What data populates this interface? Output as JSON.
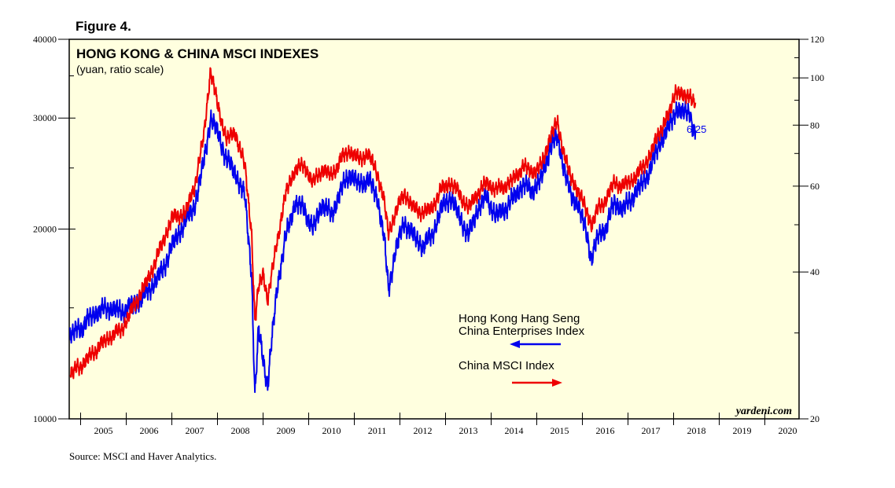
{
  "figure_label": "Figure 4.",
  "source": "Source: MSCI and Haver Analytics.",
  "colors": {
    "hk": "#0000ee",
    "china": "#ee0000",
    "background": "#ffffdf"
  },
  "chart_data": {
    "type": "line",
    "title": "HONG KONG & CHINA MSCI INDEXES",
    "subtitle": "(yuan, ratio scale)",
    "watermark": "yardeni.com",
    "end_label": "6/25",
    "x_range": [
      2004.75,
      2020.75
    ],
    "x_ticks": [
      "2005",
      "2006",
      "2007",
      "2008",
      "2009",
      "2010",
      "2011",
      "2012",
      "2013",
      "2014",
      "2015",
      "2016",
      "2017",
      "2018",
      "2019",
      "2020"
    ],
    "y_left": {
      "scale": "log",
      "range": [
        10000,
        40000
      ],
      "ticks": [
        10000,
        20000,
        30000,
        40000
      ],
      "tick_labels": [
        "10000",
        "20000",
        "30000",
        "40000"
      ]
    },
    "y_right": {
      "scale": "log",
      "range": [
        20,
        120
      ],
      "ticks": [
        20,
        40,
        60,
        80,
        100,
        120
      ],
      "tick_labels": [
        "20",
        "40",
        "60",
        "80",
        "100",
        "120"
      ]
    },
    "series": [
      {
        "name": "Hong Kong Hang Seng China Enterprises Index",
        "legend_lines": [
          "Hong Kong Hang Seng",
          "China Enterprises Index"
        ],
        "axis": "left",
        "arrow": "left",
        "points": [
          [
            2004.77,
            13700
          ],
          [
            2005.0,
            13900
          ],
          [
            2005.3,
            14700
          ],
          [
            2005.6,
            15000
          ],
          [
            2005.9,
            14800
          ],
          [
            2006.2,
            15200
          ],
          [
            2006.5,
            16000
          ],
          [
            2006.8,
            17200
          ],
          [
            2007.0,
            18800
          ],
          [
            2007.3,
            20600
          ],
          [
            2007.5,
            21800
          ],
          [
            2007.7,
            25500
          ],
          [
            2007.85,
            30000
          ],
          [
            2008.0,
            28500
          ],
          [
            2008.2,
            25800
          ],
          [
            2008.4,
            24500
          ],
          [
            2008.6,
            22500
          ],
          [
            2008.75,
            17000
          ],
          [
            2008.82,
            11000
          ],
          [
            2008.9,
            13800
          ],
          [
            2009.0,
            12500
          ],
          [
            2009.1,
            11300
          ],
          [
            2009.2,
            13500
          ],
          [
            2009.3,
            16000
          ],
          [
            2009.5,
            19500
          ],
          [
            2009.7,
            22000
          ],
          [
            2009.9,
            21500
          ],
          [
            2010.1,
            20000
          ],
          [
            2010.3,
            22000
          ],
          [
            2010.5,
            21000
          ],
          [
            2010.7,
            23000
          ],
          [
            2010.9,
            24500
          ],
          [
            2011.1,
            23500
          ],
          [
            2011.3,
            24000
          ],
          [
            2011.5,
            22500
          ],
          [
            2011.65,
            19500
          ],
          [
            2011.75,
            16000
          ],
          [
            2011.9,
            18500
          ],
          [
            2012.1,
            20500
          ],
          [
            2012.3,
            19500
          ],
          [
            2012.5,
            18800
          ],
          [
            2012.7,
            19500
          ],
          [
            2012.9,
            21500
          ],
          [
            2013.1,
            22500
          ],
          [
            2013.3,
            21000
          ],
          [
            2013.5,
            19500
          ],
          [
            2013.7,
            21500
          ],
          [
            2013.9,
            22500
          ],
          [
            2014.1,
            21000
          ],
          [
            2014.3,
            21500
          ],
          [
            2014.5,
            22500
          ],
          [
            2014.7,
            23500
          ],
          [
            2014.9,
            23000
          ],
          [
            2015.1,
            24000
          ],
          [
            2015.3,
            27000
          ],
          [
            2015.45,
            28000
          ],
          [
            2015.6,
            25000
          ],
          [
            2015.75,
            22500
          ],
          [
            2015.9,
            22000
          ],
          [
            2016.1,
            19500
          ],
          [
            2016.2,
            18000
          ],
          [
            2016.35,
            19500
          ],
          [
            2016.5,
            20000
          ],
          [
            2016.7,
            22000
          ],
          [
            2016.9,
            21500
          ],
          [
            2017.1,
            22500
          ],
          [
            2017.3,
            23500
          ],
          [
            2017.5,
            25000
          ],
          [
            2017.7,
            27500
          ],
          [
            2017.9,
            29000
          ],
          [
            2018.05,
            31000
          ],
          [
            2018.2,
            30500
          ],
          [
            2018.35,
            31000
          ],
          [
            2018.42,
            29000
          ],
          [
            2018.48,
            28700
          ]
        ]
      },
      {
        "name": "China MSCI Index",
        "legend_lines": [
          "China MSCI Index"
        ],
        "axis": "right",
        "arrow": "right",
        "points": [
          [
            2004.77,
            25
          ],
          [
            2005.0,
            25.6
          ],
          [
            2005.3,
            27.5
          ],
          [
            2005.6,
            29.3
          ],
          [
            2005.9,
            30.5
          ],
          [
            2006.2,
            34.5
          ],
          [
            2006.5,
            39
          ],
          [
            2006.8,
            46
          ],
          [
            2007.0,
            51.5
          ],
          [
            2007.3,
            53
          ],
          [
            2007.5,
            60
          ],
          [
            2007.7,
            76
          ],
          [
            2007.85,
            104
          ],
          [
            2008.0,
            88
          ],
          [
            2008.2,
            75
          ],
          [
            2008.4,
            77
          ],
          [
            2008.6,
            66
          ],
          [
            2008.75,
            48
          ],
          [
            2008.82,
            32
          ],
          [
            2008.9,
            37
          ],
          [
            2009.0,
            40
          ],
          [
            2009.1,
            35
          ],
          [
            2009.2,
            40
          ],
          [
            2009.3,
            46
          ],
          [
            2009.5,
            58
          ],
          [
            2009.7,
            65
          ],
          [
            2009.9,
            66
          ],
          [
            2010.1,
            61
          ],
          [
            2010.3,
            65
          ],
          [
            2010.5,
            63
          ],
          [
            2010.7,
            68
          ],
          [
            2010.9,
            71
          ],
          [
            2011.1,
            68
          ],
          [
            2011.3,
            70
          ],
          [
            2011.5,
            64
          ],
          [
            2011.65,
            56
          ],
          [
            2011.75,
            48
          ],
          [
            2011.9,
            53
          ],
          [
            2012.1,
            58
          ],
          [
            2012.3,
            54
          ],
          [
            2012.5,
            53
          ],
          [
            2012.7,
            54
          ],
          [
            2012.9,
            59
          ],
          [
            2013.1,
            61
          ],
          [
            2013.3,
            58
          ],
          [
            2013.5,
            54
          ],
          [
            2013.7,
            58
          ],
          [
            2013.9,
            61
          ],
          [
            2014.1,
            59
          ],
          [
            2014.3,
            60
          ],
          [
            2014.5,
            62
          ],
          [
            2014.7,
            66
          ],
          [
            2014.9,
            64
          ],
          [
            2015.1,
            66
          ],
          [
            2015.3,
            76
          ],
          [
            2015.45,
            81
          ],
          [
            2015.6,
            70
          ],
          [
            2015.75,
            62
          ],
          [
            2015.9,
            59
          ],
          [
            2016.1,
            53
          ],
          [
            2016.2,
            50
          ],
          [
            2016.35,
            54
          ],
          [
            2016.5,
            56
          ],
          [
            2016.7,
            61
          ],
          [
            2016.9,
            60
          ],
          [
            2017.1,
            62
          ],
          [
            2017.3,
            65
          ],
          [
            2017.5,
            70
          ],
          [
            2017.7,
            78
          ],
          [
            2017.9,
            84
          ],
          [
            2018.05,
            95
          ],
          [
            2018.2,
            91
          ],
          [
            2018.35,
            93
          ],
          [
            2018.42,
            90
          ],
          [
            2018.48,
            89
          ]
        ]
      }
    ]
  }
}
